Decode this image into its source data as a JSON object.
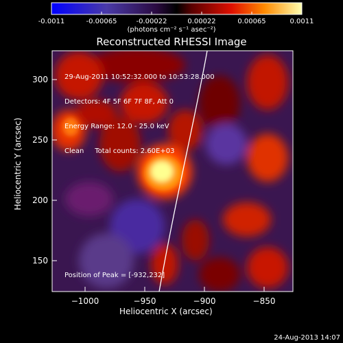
{
  "colorbar": {
    "ticks": [
      "-0.0011",
      "-0.00065",
      "-0.00022",
      "0.00022",
      "0.00065",
      "0.0011"
    ],
    "units": "(photons cm⁻² s⁻¹ asec⁻²)"
  },
  "plot": {
    "title": "Reconstructed RHESSI Image",
    "xlabel": "Heliocentric X (arcsec)",
    "ylabel": "Heliocentric Y (arcsec)",
    "xticks": [
      "−1000",
      "−950",
      "−900",
      "−850"
    ],
    "yticks": [
      "300",
      "250",
      "200",
      "150"
    ]
  },
  "overlay": {
    "time_range": "29-Aug-2011 10:52:32.000 to 10:53:28.000",
    "detectors": "Detectors: 4F 5F 6F 7F 8F, Att 0",
    "energy": "Energy Range: 12.0 - 25.0 keV",
    "method": "Clean     Total counts: 2.60E+03",
    "peak": "Position of Peak = [-932,232]"
  },
  "footer": {
    "timestamp": "24-Aug-2013 14:07"
  }
}
